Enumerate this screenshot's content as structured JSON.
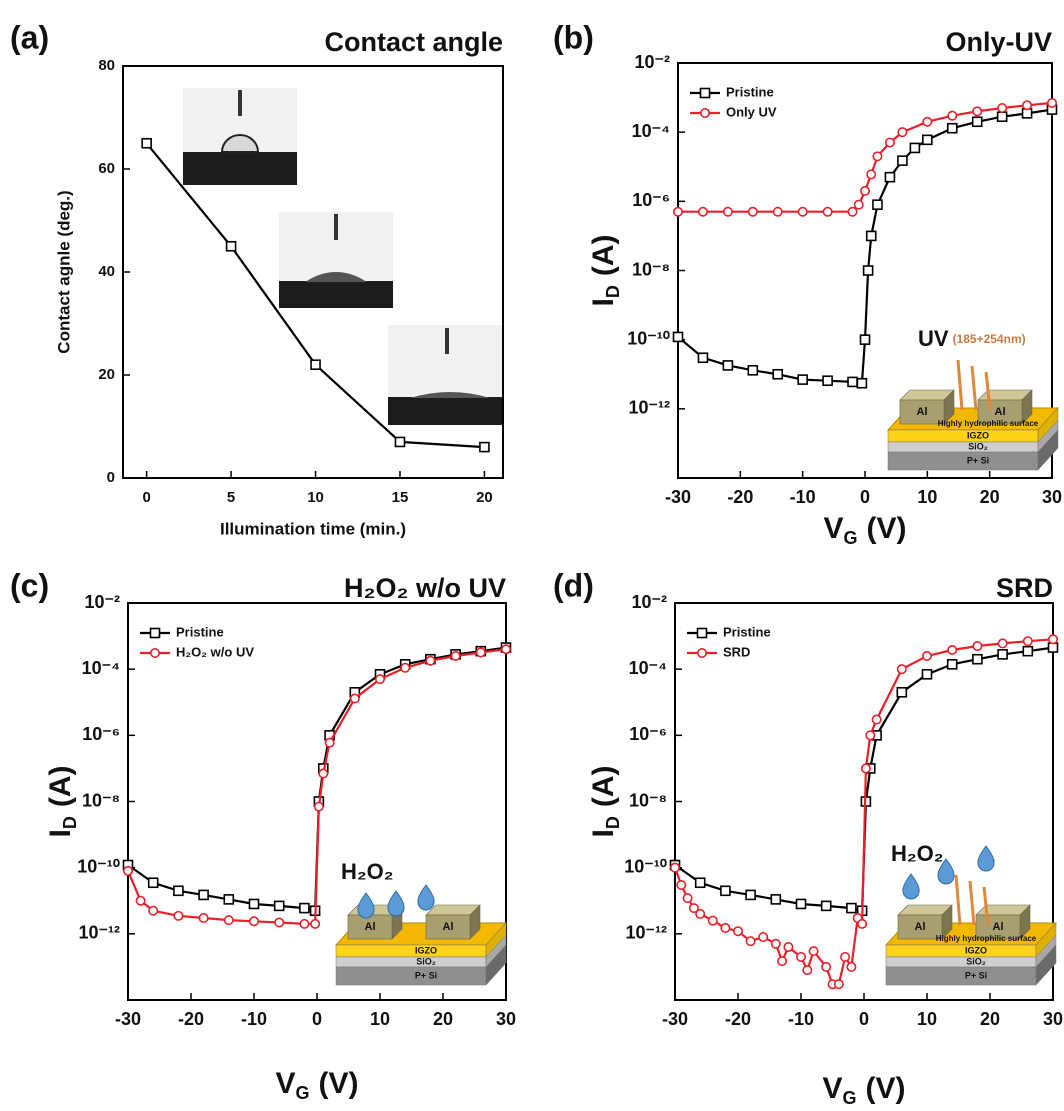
{
  "chart_data": [
    {
      "type": "line",
      "panel_label": "(a)",
      "title": "Contact angle",
      "x_label": "Illumination time (min.)",
      "y_label": "Contact agnle (deg.)",
      "x": [
        0,
        5,
        10,
        15,
        20
      ],
      "series": [
        {
          "color": "#000000",
          "marker": "square",
          "values": [
            65,
            45,
            22,
            7,
            6
          ]
        }
      ],
      "xlim": [
        -1.4,
        21.1
      ],
      "xticks": [
        0,
        5,
        10,
        15,
        20
      ],
      "ylim": [
        0,
        80
      ],
      "yticks": [
        0,
        20,
        40,
        60,
        80
      ]
    },
    {
      "type": "line",
      "panel_label": "(b)",
      "title": "Only-UV",
      "log_y": true,
      "legend": "upper left",
      "x_label": {
        "text": "V",
        "subscript": "G",
        "unit": "(V)"
      },
      "y_label": {
        "text": "I",
        "subscript": "D",
        "unit": "(A)"
      },
      "series": [
        {
          "name": "Pristine",
          "color": "#000000",
          "marker": "square",
          "x": [
            -30,
            -26,
            -22,
            -18,
            -14,
            -10,
            -6,
            -2,
            -0.5,
            0,
            0.5,
            1,
            2,
            4,
            6,
            8,
            10,
            14,
            18,
            22,
            26,
            30
          ],
          "values": [
            1.2e-10,
            3e-11,
            1.8e-11,
            1.3e-11,
            1e-11,
            7e-12,
            6.5e-12,
            6e-12,
            5.5e-12,
            1e-10,
            1e-08,
            1e-07,
            8e-07,
            5e-06,
            1.5e-05,
            3.5e-05,
            6e-05,
            0.00013,
            0.0002,
            0.00028,
            0.00035,
            0.00045
          ]
        },
        {
          "name": "Only UV",
          "color": "#e8202a",
          "marker": "circle",
          "x": [
            -30,
            -26,
            -22,
            -18,
            -14,
            -10,
            -6,
            -2,
            -1,
            0,
            1,
            2,
            4,
            6,
            10,
            14,
            18,
            22,
            26,
            30
          ],
          "values": [
            5e-07,
            5e-07,
            5e-07,
            5e-07,
            5e-07,
            5e-07,
            5e-07,
            5e-07,
            8e-07,
            2e-06,
            6e-06,
            2e-05,
            5e-05,
            0.0001,
            0.0002,
            0.0003,
            0.0004,
            0.0005,
            0.0006,
            0.0007
          ]
        }
      ],
      "xlim": [
        -30,
        30
      ],
      "xticks": [
        -30,
        -20,
        -10,
        0,
        10,
        20,
        30
      ],
      "ylim": [
        1e-14,
        0.01
      ],
      "yticks": [
        {
          "value": 1e-12,
          "label": "10⁻¹²"
        },
        {
          "value": 1e-10,
          "label": "10⁻¹⁰"
        },
        {
          "value": 1e-08,
          "label": "10⁻⁸"
        },
        {
          "value": 1e-06,
          "label": "10⁻⁶"
        },
        {
          "value": 0.0001,
          "label": "10⁻⁴"
        },
        {
          "value": 0.01,
          "label": "10⁻²"
        }
      ],
      "inset": {
        "uv": "UV",
        "uv_note": "(185+254nm)",
        "electrode": "Al",
        "surface": "Highly hydrophilic surface",
        "layers": [
          "IGZO",
          "SiO₂",
          "P+ Si"
        ]
      }
    },
    {
      "type": "line",
      "panel_label": "(c)",
      "title": "H₂O₂ w/o UV",
      "log_y": true,
      "legend": "upper left",
      "x_label": {
        "text": "V",
        "subscript": "G",
        "unit": "(V)"
      },
      "y_label": {
        "text": "I",
        "subscript": "D",
        "unit": "(A)"
      },
      "series": [
        {
          "name": "Pristine",
          "color": "#000000",
          "marker": "square",
          "x": [
            -30,
            -26,
            -22,
            -18,
            -14,
            -10,
            -6,
            -2,
            -0.3,
            0.3,
            1,
            2,
            6,
            10,
            14,
            18,
            22,
            26,
            30
          ],
          "values": [
            1.2e-10,
            3.5e-11,
            2e-11,
            1.5e-11,
            1.1e-11,
            8e-12,
            7e-12,
            6e-12,
            5e-12,
            1e-08,
            1e-07,
            1e-06,
            2e-05,
            7e-05,
            0.00014,
            0.0002,
            0.00028,
            0.00035,
            0.00045
          ]
        },
        {
          "name": "H₂O₂ w/o UV",
          "color": "#e8202a",
          "marker": "circle",
          "x": [
            -30,
            -28,
            -26,
            -22,
            -18,
            -14,
            -10,
            -6,
            -2,
            -0.3,
            0.3,
            1,
            2,
            6,
            10,
            14,
            18,
            22,
            26,
            30
          ],
          "values": [
            8e-11,
            1e-11,
            5e-12,
            3.5e-12,
            3e-12,
            2.6e-12,
            2.4e-12,
            2.2e-12,
            2e-12,
            2e-12,
            7e-09,
            7e-08,
            6e-07,
            1.3e-05,
            5e-05,
            0.00011,
            0.00018,
            0.00025,
            0.00032,
            0.0004
          ]
        }
      ],
      "xlim": [
        -30,
        30
      ],
      "xticks": [
        -30,
        -20,
        -10,
        0,
        10,
        20,
        30
      ],
      "ylim": [
        1e-14,
        0.01
      ],
      "yticks": [
        {
          "value": 1e-12,
          "label": "10⁻¹²"
        },
        {
          "value": 1e-10,
          "label": "10⁻¹⁰"
        },
        {
          "value": 1e-08,
          "label": "10⁻⁸"
        },
        {
          "value": 1e-06,
          "label": "10⁻⁶"
        },
        {
          "value": 0.0001,
          "label": "10⁻⁴"
        },
        {
          "value": 0.01,
          "label": "10⁻²"
        }
      ],
      "inset": {
        "chemical": "H₂O₂",
        "electrode": "Al",
        "layers": [
          "IGZO",
          "SiO₂",
          "P+ Si"
        ]
      }
    },
    {
      "type": "line",
      "panel_label": "(d)",
      "title": "SRD",
      "log_y": true,
      "legend": "upper left",
      "x_label": {
        "text": "V",
        "subscript": "G",
        "unit": "(V)"
      },
      "y_label": {
        "text": "I",
        "subscript": "D",
        "unit": "(A)"
      },
      "series": [
        {
          "name": "Pristine",
          "color": "#000000",
          "marker": "square",
          "x": [
            -30,
            -26,
            -22,
            -18,
            -14,
            -10,
            -6,
            -2,
            -0.3,
            0.3,
            1,
            2,
            6,
            10,
            14,
            18,
            22,
            26,
            30
          ],
          "values": [
            1.2e-10,
            3.5e-11,
            2e-11,
            1.5e-11,
            1.1e-11,
            8e-12,
            7e-12,
            6e-12,
            5e-12,
            1e-08,
            1e-07,
            1e-06,
            2e-05,
            7e-05,
            0.00014,
            0.0002,
            0.00028,
            0.00035,
            0.00045
          ]
        },
        {
          "name": "SRD",
          "color": "#e8202a",
          "marker": "circle",
          "x": [
            -30,
            -29,
            -28,
            -27,
            -26,
            -24,
            -22,
            -20,
            -18,
            -16,
            -14,
            -13,
            -12,
            -10,
            -9,
            -8,
            -6,
            -5,
            -4,
            -3,
            -2,
            -1,
            -0.3,
            0.3,
            1,
            2,
            6,
            10,
            14,
            18,
            22,
            26,
            30
          ],
          "values": [
            1e-10,
            3e-11,
            1.2e-11,
            6e-12,
            4e-12,
            2.5e-12,
            1.5e-12,
            1.2e-12,
            6e-13,
            8e-13,
            5e-13,
            1.5e-13,
            4e-13,
            2e-13,
            8e-14,
            3e-13,
            1e-13,
            3e-14,
            3e-14,
            2e-13,
            1e-13,
            3e-12,
            2e-12,
            1e-07,
            1e-06,
            3e-06,
            0.0001,
            0.00025,
            0.00038,
            0.0005,
            0.0006,
            0.0007,
            0.0008
          ]
        }
      ],
      "xlim": [
        -30,
        30
      ],
      "xticks": [
        -30,
        -20,
        -10,
        0,
        10,
        20,
        30
      ],
      "ylim": [
        1e-14,
        0.01
      ],
      "yticks": [
        {
          "value": 1e-12,
          "label": "10⁻¹²"
        },
        {
          "value": 1e-10,
          "label": "10⁻¹⁰"
        },
        {
          "value": 1e-08,
          "label": "10⁻⁸"
        },
        {
          "value": 1e-06,
          "label": "10⁻⁶"
        },
        {
          "value": 0.0001,
          "label": "10⁻⁴"
        },
        {
          "value": 0.01,
          "label": "10⁻²"
        }
      ],
      "inset": {
        "chemical": "H₂O₂",
        "electrode": "Al",
        "surface": "Highly hydrophilic surface",
        "layers": [
          "IGZO",
          "SiO₂",
          "P+ Si"
        ]
      }
    }
  ]
}
